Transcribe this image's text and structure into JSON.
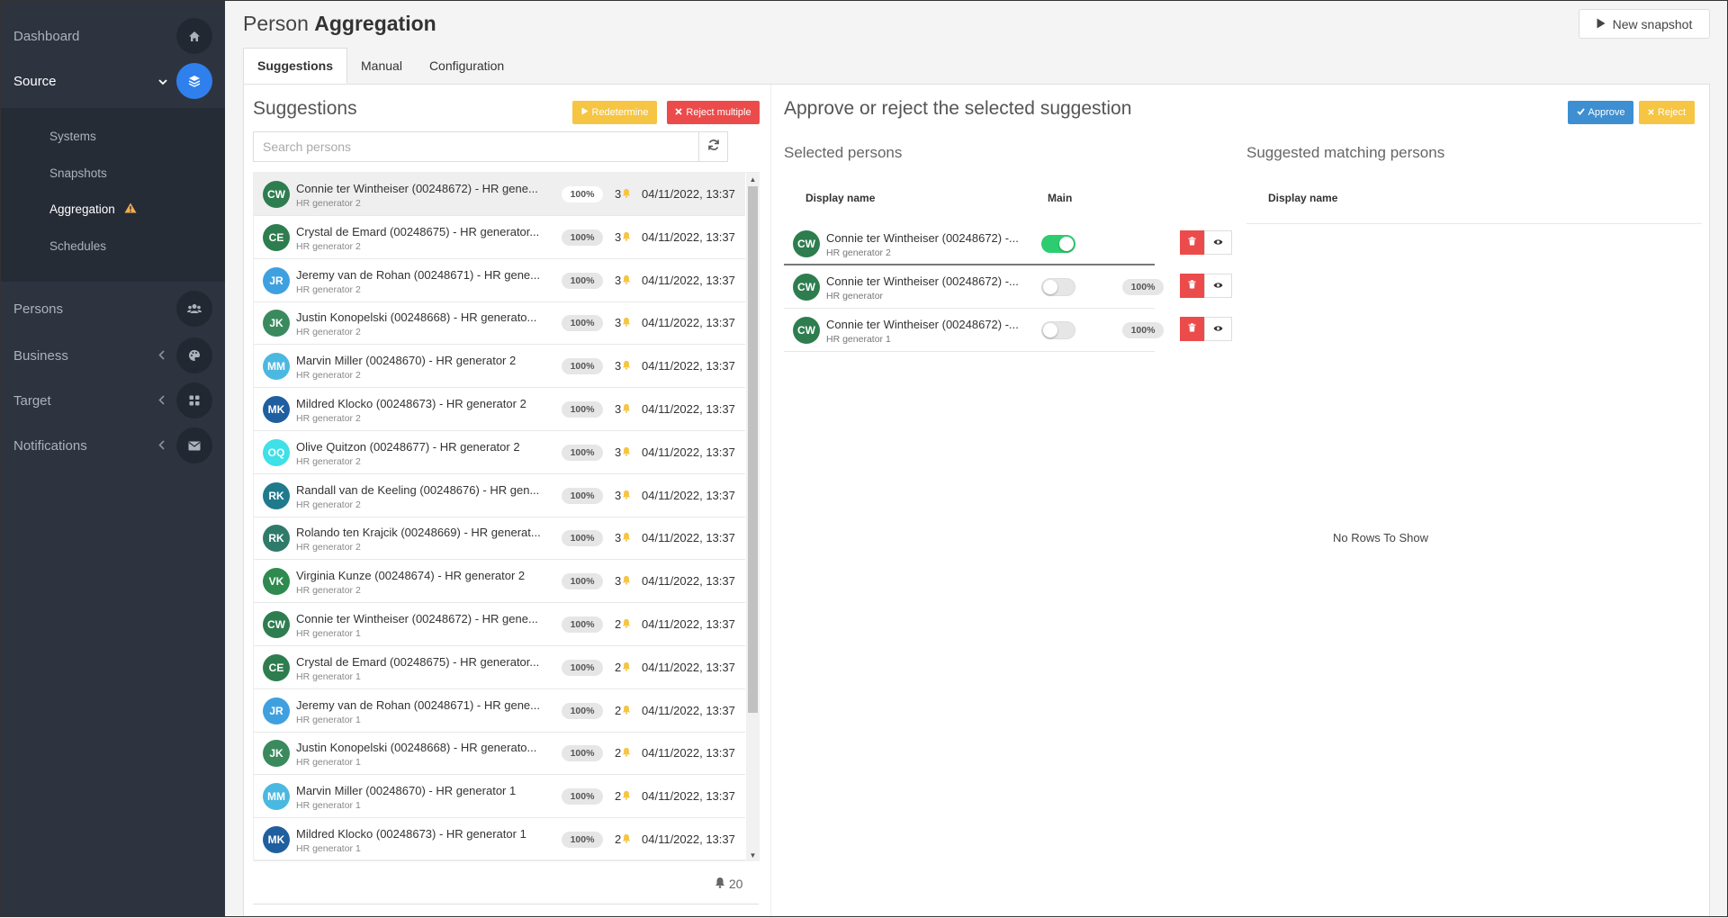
{
  "sidebar": {
    "items": [
      {
        "label": "Dashboard",
        "icon": "home-icon"
      },
      {
        "label": "Source",
        "icon": "layers-icon"
      },
      {
        "label": "Persons",
        "icon": "users-icon"
      },
      {
        "label": "Business",
        "icon": "palette-icon"
      },
      {
        "label": "Target",
        "icon": "grid-icon"
      },
      {
        "label": "Notifications",
        "icon": "envelope-icon"
      }
    ],
    "source_submenu": [
      {
        "label": "Systems"
      },
      {
        "label": "Snapshots"
      },
      {
        "label": "Aggregation"
      },
      {
        "label": "Schedules"
      }
    ]
  },
  "header": {
    "title_prefix": "Person",
    "title_main": "Aggregation",
    "new_snapshot_label": "New snapshot"
  },
  "tabs": [
    {
      "label": "Suggestions"
    },
    {
      "label": "Manual"
    },
    {
      "label": "Configuration"
    }
  ],
  "suggestions": {
    "title": "Suggestions",
    "redetermine_label": "Redetermine",
    "reject_multiple_label": "Reject multiple",
    "search_placeholder": "Search persons",
    "rows": [
      {
        "initials": "CW",
        "color": "#2e7d4f",
        "name": "Connie ter Wintheiser (00248672) - HR gene...",
        "sub": "HR generator 2",
        "pct": "100%",
        "count": "3",
        "date": "04/11/2022, 13:37"
      },
      {
        "initials": "CE",
        "color": "#2e7d4f",
        "name": "Crystal de Emard (00248675) - HR generator...",
        "sub": "HR generator 2",
        "pct": "100%",
        "count": "3",
        "date": "04/11/2022, 13:37"
      },
      {
        "initials": "JR",
        "color": "#3fa0e0",
        "name": "Jeremy van de Rohan (00248671) - HR gene...",
        "sub": "HR generator 2",
        "pct": "100%",
        "count": "3",
        "date": "04/11/2022, 13:37"
      },
      {
        "initials": "JK",
        "color": "#3a8a5e",
        "name": "Justin Konopelski (00248668) - HR generato...",
        "sub": "HR generator 2",
        "pct": "100%",
        "count": "3",
        "date": "04/11/2022, 13:37"
      },
      {
        "initials": "MM",
        "color": "#4bb8e0",
        "name": "Marvin Miller (00248670) - HR generator 2",
        "sub": "HR generator 2",
        "pct": "100%",
        "count": "3",
        "date": "04/11/2022, 13:37"
      },
      {
        "initials": "MK",
        "color": "#1f5fa0",
        "name": "Mildred Klocko (00248673) - HR generator 2",
        "sub": "HR generator 2",
        "pct": "100%",
        "count": "3",
        "date": "04/11/2022, 13:37"
      },
      {
        "initials": "OQ",
        "color": "#3fe0e8",
        "name": "Olive Quitzon (00248677) - HR generator 2",
        "sub": "HR generator 2",
        "pct": "100%",
        "count": "3",
        "date": "04/11/2022, 13:37"
      },
      {
        "initials": "RK",
        "color": "#1f7a8c",
        "name": "Randall van de Keeling (00248676) - HR gen...",
        "sub": "HR generator 2",
        "pct": "100%",
        "count": "3",
        "date": "04/11/2022, 13:37"
      },
      {
        "initials": "RK",
        "color": "#2f7a6a",
        "name": "Rolando ten Krajcik (00248669) - HR generat...",
        "sub": "HR generator 2",
        "pct": "100%",
        "count": "3",
        "date": "04/11/2022, 13:37"
      },
      {
        "initials": "VK",
        "color": "#2e8a4f",
        "name": "Virginia Kunze (00248674) - HR generator 2",
        "sub": "HR generator 2",
        "pct": "100%",
        "count": "3",
        "date": "04/11/2022, 13:37"
      },
      {
        "initials": "CW",
        "color": "#2e7d4f",
        "name": "Connie ter Wintheiser (00248672) - HR gene...",
        "sub": "HR generator 1",
        "pct": "100%",
        "count": "2",
        "date": "04/11/2022, 13:37"
      },
      {
        "initials": "CE",
        "color": "#2e7d4f",
        "name": "Crystal de Emard (00248675) - HR generator...",
        "sub": "HR generator 1",
        "pct": "100%",
        "count": "2",
        "date": "04/11/2022, 13:37"
      },
      {
        "initials": "JR",
        "color": "#3fa0e0",
        "name": "Jeremy van de Rohan (00248671) - HR gene...",
        "sub": "HR generator 1",
        "pct": "100%",
        "count": "2",
        "date": "04/11/2022, 13:37"
      },
      {
        "initials": "JK",
        "color": "#3a8a5e",
        "name": "Justin Konopelski (00248668) - HR generato...",
        "sub": "HR generator 1",
        "pct": "100%",
        "count": "2",
        "date": "04/11/2022, 13:37"
      },
      {
        "initials": "MM",
        "color": "#4bb8e0",
        "name": "Marvin Miller (00248670) - HR generator 1",
        "sub": "HR generator 1",
        "pct": "100%",
        "count": "2",
        "date": "04/11/2022, 13:37"
      },
      {
        "initials": "MK",
        "color": "#1f5fa0",
        "name": "Mildred Klocko (00248673) - HR generator 1",
        "sub": "HR generator 1",
        "pct": "100%",
        "count": "2",
        "date": "04/11/2022, 13:37"
      }
    ],
    "total_count": "20"
  },
  "approval": {
    "title": "Approve or reject the selected suggestion",
    "approve_label": "Approve",
    "reject_label": "Reject",
    "selected_title": "Selected persons",
    "matching_title": "Suggested matching persons",
    "col_display_name": "Display name",
    "col_main": "Main",
    "selected_rows": [
      {
        "initials": "CW",
        "color": "#2e7d4f",
        "name": "Connie ter Wintheiser (00248672) -...",
        "sub": "HR generator 2",
        "main": true,
        "pct": ""
      },
      {
        "initials": "CW",
        "color": "#2e7d4f",
        "name": "Connie ter Wintheiser (00248672) -...",
        "sub": "HR generator",
        "main": false,
        "pct": "100%"
      },
      {
        "initials": "CW",
        "color": "#2e7d4f",
        "name": "Connie ter Wintheiser (00248672) -...",
        "sub": "HR generator 1",
        "main": false,
        "pct": "100%"
      }
    ],
    "no_rows_text": "No Rows To Show"
  }
}
